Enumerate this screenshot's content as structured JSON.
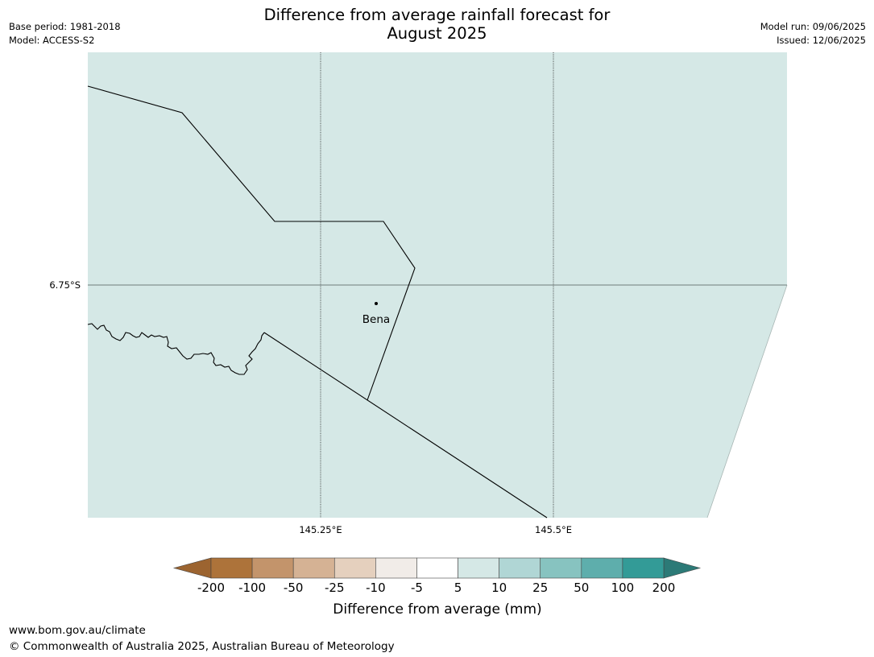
{
  "title": {
    "line1": "Difference from average rainfall forecast for",
    "line2": "August 2025"
  },
  "meta_left": {
    "base_period": "Base period: 1981-2018",
    "model": "Model: ACCESS-S2"
  },
  "meta_right": {
    "model_run": "Model run: 09/06/2025",
    "issued": "Issued: 12/06/2025"
  },
  "map": {
    "fill_color": "#d5e8e6",
    "lat_label": "6.75°S",
    "lon_labels": [
      "145.25°E",
      "145.5°E"
    ],
    "place": "Bena"
  },
  "colorbar": {
    "label": "Difference from average (mm)",
    "ticks": [
      "-200",
      "-100",
      "-50",
      "-25",
      "-10",
      "-5",
      "5",
      "10",
      "25",
      "50",
      "100",
      "200"
    ],
    "under_color": "#9c6430",
    "over_color": "#2c7a77",
    "colors": [
      "#ad733a",
      "#c3946b",
      "#d5b294",
      "#e5d0be",
      "#f1ece8",
      "#ffffff",
      "#d5e8e6",
      "#b0d6d5",
      "#87c3c0",
      "#5eaeac",
      "#339b97"
    ]
  },
  "footer": {
    "url": "www.bom.gov.au/climate",
    "copyright": "© Commonwealth of Australia 2025, Australian Bureau of Meteorology"
  }
}
